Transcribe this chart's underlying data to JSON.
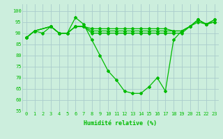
{
  "line1": {
    "x": [
      0,
      1,
      2,
      3,
      4,
      5,
      6,
      7,
      8,
      9,
      10,
      11,
      12,
      13,
      14,
      15,
      16,
      17,
      18,
      19,
      20,
      21,
      22,
      23
    ],
    "y": [
      88,
      91,
      90,
      93,
      90,
      90,
      97,
      94,
      87,
      80,
      73,
      69,
      64,
      63,
      63,
      66,
      70,
      64,
      87,
      91,
      93,
      96,
      94,
      96
    ]
  },
  "line2": {
    "x": [
      0,
      1,
      3,
      4,
      5,
      6,
      7,
      8,
      9,
      10,
      11,
      12,
      13,
      14,
      15,
      16,
      17,
      18,
      19,
      20,
      21,
      22,
      23
    ],
    "y": [
      88,
      91,
      93,
      90,
      90,
      93,
      93,
      91,
      91,
      91,
      91,
      91,
      91,
      91,
      91,
      91,
      91,
      91,
      91,
      93,
      96,
      94,
      96
    ]
  },
  "line3": {
    "x": [
      0,
      1,
      3,
      4,
      5,
      6,
      7,
      8,
      9,
      10,
      11,
      12,
      13,
      14,
      15,
      16,
      17,
      18,
      19,
      20,
      21,
      22,
      23
    ],
    "y": [
      88,
      91,
      93,
      90,
      90,
      93,
      93,
      92,
      92,
      92,
      92,
      92,
      92,
      92,
      92,
      92,
      92,
      91,
      91,
      93,
      95,
      94,
      95
    ]
  },
  "line4": {
    "x": [
      0,
      1,
      3,
      4,
      5,
      6,
      7,
      8,
      9,
      10,
      11,
      12,
      13,
      14,
      15,
      16,
      17,
      18,
      19,
      20,
      21,
      22,
      23
    ],
    "y": [
      88,
      91,
      93,
      90,
      90,
      93,
      93,
      90,
      90,
      90,
      90,
      90,
      90,
      90,
      90,
      90,
      90,
      90,
      90,
      93,
      96,
      94,
      95
    ]
  },
  "color": "#00bb00",
  "bg_color": "#cceedd",
  "grid_color": "#aacccc",
  "xlabel": "Humidité relative (%)",
  "ylim": [
    55,
    103
  ],
  "yticks": [
    55,
    60,
    65,
    70,
    75,
    80,
    85,
    90,
    95,
    100
  ],
  "xlim": [
    -0.5,
    23.5
  ],
  "xticks": [
    0,
    1,
    2,
    3,
    4,
    5,
    6,
    7,
    8,
    9,
    10,
    11,
    12,
    13,
    14,
    15,
    16,
    17,
    18,
    19,
    20,
    21,
    22,
    23
  ]
}
